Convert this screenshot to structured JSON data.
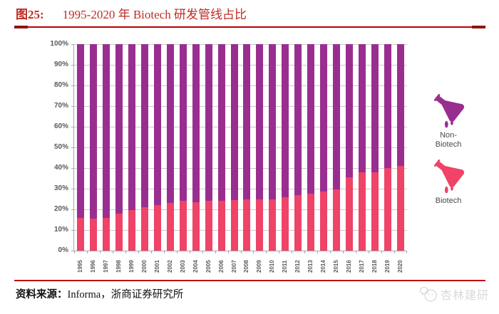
{
  "title": {
    "tag": "图25:",
    "text": "1995-2020 年 Biotech 研发管线占比"
  },
  "footer": {
    "label": "资料来源：",
    "text": "Informa，浙商证券研究所"
  },
  "watermark": {
    "text": "杏林建研",
    "icon": "chat-face-logo"
  },
  "legend": {
    "non_biotech": {
      "line1": "Non-",
      "line2": "Biotech",
      "icon": "flask-icon",
      "color": "#992e90"
    },
    "biotech": {
      "line1": "Biotech",
      "icon": "flask-icon",
      "color": "#ef4368"
    }
  },
  "colors": {
    "title_red": "#bf2c25",
    "rule_red": "#c00000",
    "rule_cap": "#8e160e",
    "biotech_pink": "#ef4368",
    "non_biotech_purple": "#992e90",
    "gridline": "#c9c9c9",
    "axis": "#a6a6a6",
    "tick_label": "#595959",
    "legend_text": "#4a4a4a",
    "source_text": "#111111",
    "watermark_gray": "#d9d9d9"
  },
  "chart_data": {
    "type": "bar",
    "stacked": true,
    "normalized_to_100_percent": true,
    "title": "1995-2020 年 Biotech 研发管线占比",
    "xlabel": "",
    "ylabel": "",
    "ylim": [
      0,
      100
    ],
    "grid": true,
    "legend_position": "right",
    "yticks": [
      "0%",
      "10%",
      "20%",
      "30%",
      "40%",
      "50%",
      "60%",
      "70%",
      "80%",
      "90%",
      "100%"
    ],
    "categories": [
      "1995",
      "1996",
      "1997",
      "1998",
      "1999",
      "2000",
      "2001",
      "2002",
      "2003",
      "2004",
      "2005",
      "2006",
      "2007",
      "2008",
      "2009",
      "2010",
      "2011",
      "2012",
      "2013",
      "2014",
      "2015",
      "2016",
      "2017",
      "2018",
      "2019",
      "2020"
    ],
    "series": [
      {
        "name": "Biotech",
        "color": "#ef4368",
        "values": [
          16,
          15.5,
          16,
          18,
          19.5,
          21,
          22,
          23,
          24,
          23.5,
          24,
          24,
          24.5,
          25,
          25,
          25,
          26,
          27,
          27.5,
          28.5,
          29.5,
          35.5,
          38,
          38,
          40,
          41
        ]
      },
      {
        "name": "Non-Biotech",
        "color": "#992e90",
        "values": [
          84,
          84.5,
          84,
          82,
          80.5,
          79,
          78,
          77,
          76,
          76.5,
          76,
          76,
          75.5,
          75,
          75,
          75,
          74,
          73,
          72.5,
          71.5,
          70.5,
          64.5,
          62,
          62,
          60,
          59
        ]
      }
    ]
  }
}
